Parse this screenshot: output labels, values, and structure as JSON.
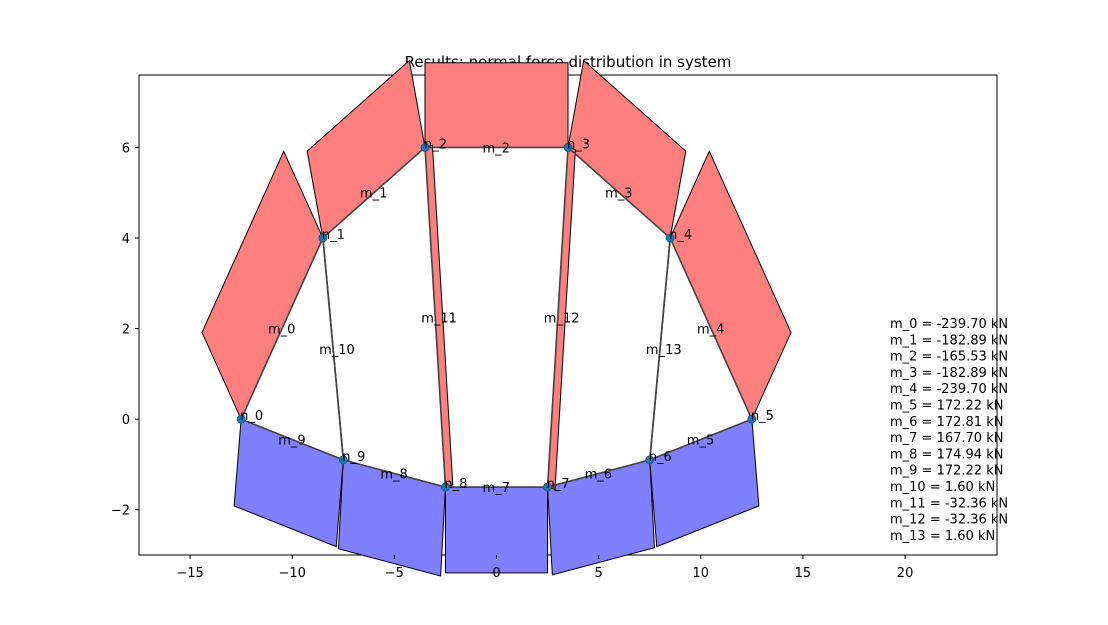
{
  "chart_data": {
    "type": "structural-diagram",
    "title": "Results: normal force distribution in system",
    "xlim": [
      -17.5,
      24.5
    ],
    "ylim": [
      -3.0,
      7.6
    ],
    "xticks": [
      -15,
      -10,
      -5,
      0,
      5,
      10,
      15,
      20
    ],
    "yticks": [
      -2,
      0,
      2,
      4,
      6
    ],
    "tension_color": "#7f7fff",
    "compression_color": "#ff7f7f",
    "node_color": "#1f77b4",
    "nodes": [
      {
        "name": "n_0",
        "x": -12.5,
        "y": 0.0
      },
      {
        "name": "n_1",
        "x": -8.5,
        "y": 4.0
      },
      {
        "name": "n_2",
        "x": -3.5,
        "y": 6.0
      },
      {
        "name": "n_3",
        "x": 3.5,
        "y": 6.0
      },
      {
        "name": "n_4",
        "x": 8.5,
        "y": 4.0
      },
      {
        "name": "n_5",
        "x": 12.5,
        "y": 0.0
      },
      {
        "name": "n_6",
        "x": 7.5,
        "y": -0.9
      },
      {
        "name": "n_7",
        "x": 2.5,
        "y": -1.5
      },
      {
        "name": "n_8",
        "x": -2.5,
        "y": -1.5
      },
      {
        "name": "n_9",
        "x": -7.5,
        "y": -0.9
      }
    ],
    "members": [
      {
        "name": "m_0",
        "from": 0,
        "to": 1,
        "force": -239.7
      },
      {
        "name": "m_1",
        "from": 1,
        "to": 2,
        "force": -182.89
      },
      {
        "name": "m_2",
        "from": 2,
        "to": 3,
        "force": -165.53
      },
      {
        "name": "m_3",
        "from": 3,
        "to": 4,
        "force": -182.89
      },
      {
        "name": "m_4",
        "from": 4,
        "to": 5,
        "force": -239.7
      },
      {
        "name": "m_5",
        "from": 5,
        "to": 6,
        "force": 172.22
      },
      {
        "name": "m_6",
        "from": 6,
        "to": 7,
        "force": 172.81
      },
      {
        "name": "m_7",
        "from": 7,
        "to": 8,
        "force": 167.7
      },
      {
        "name": "m_8",
        "from": 8,
        "to": 9,
        "force": 174.94
      },
      {
        "name": "m_9",
        "from": 9,
        "to": 0,
        "force": 172.22
      },
      {
        "name": "m_10",
        "from": 1,
        "to": 9,
        "force": 1.6
      },
      {
        "name": "m_11",
        "from": 2,
        "to": 8,
        "force": -32.36
      },
      {
        "name": "m_12",
        "from": 3,
        "to": 7,
        "force": -32.36
      },
      {
        "name": "m_13",
        "from": 4,
        "to": 6,
        "force": 1.6
      }
    ],
    "results": [
      "m_0 = -239.70 kN",
      "m_1 = -182.89 kN",
      "m_2 = -165.53 kN",
      "m_3 = -182.89 kN",
      "m_4 = -239.70 kN",
      "m_5 = 172.22 kN",
      "m_6 = 172.81 kN",
      "m_7 = 167.70 kN",
      "m_8 = 174.94 kN",
      "m_9 = 172.22 kN",
      "m_10 = 1.60 kN",
      "m_11 = -32.36 kN",
      "m_12 = -32.36 kN",
      "m_13 = 1.60 kN"
    ]
  }
}
